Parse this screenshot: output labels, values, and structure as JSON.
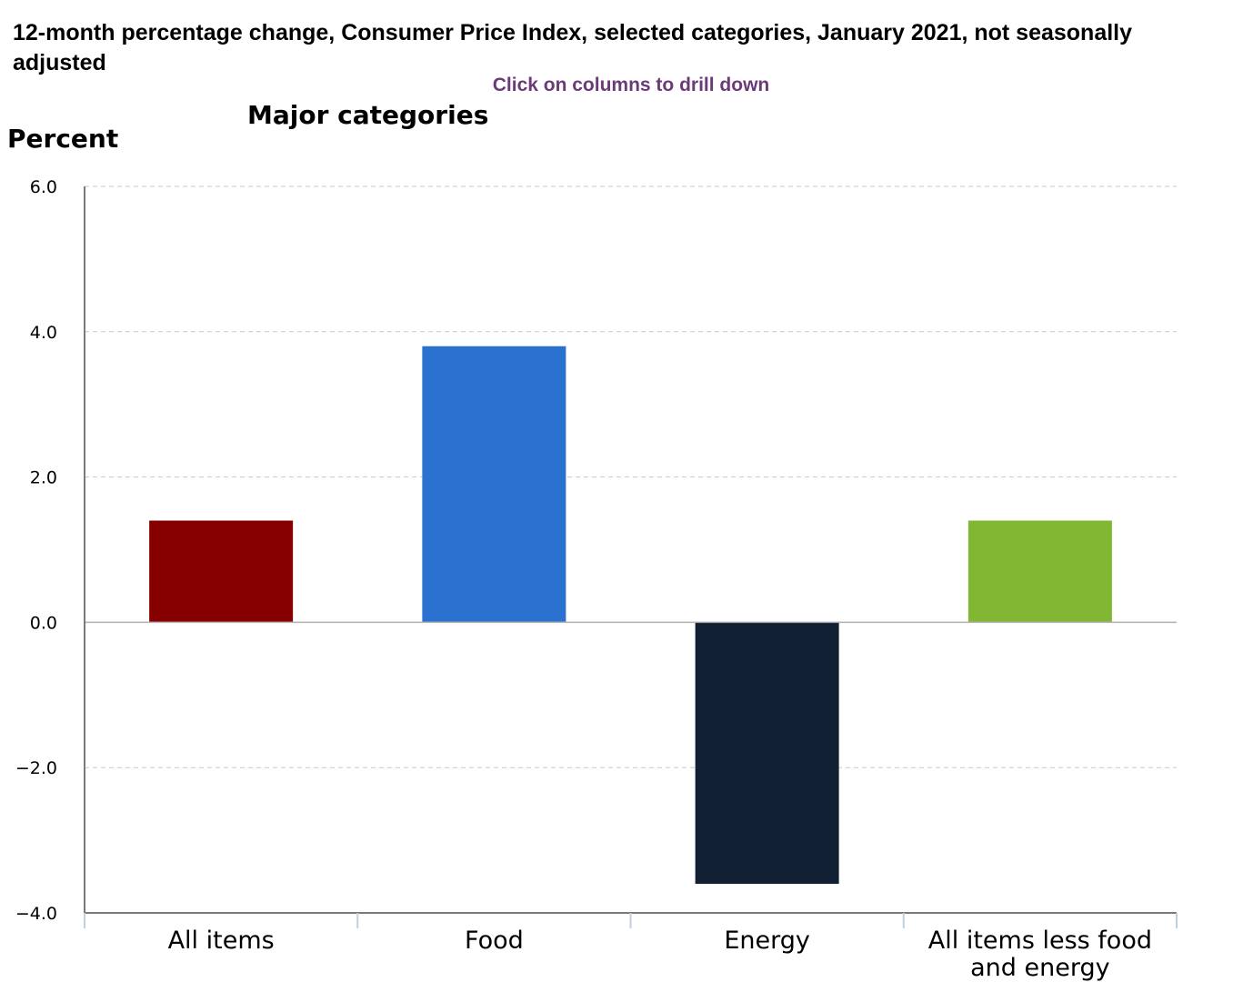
{
  "title": "12-month percentage change, Consumer Price Index, selected categories, January 2021, not seasonally adjusted",
  "hint": "Click on columns to drill down",
  "chart_data": {
    "type": "bar",
    "title": "Major categories",
    "ylabel": "Percent",
    "xlabel": "",
    "categories": [
      "All items",
      "Food",
      "Energy",
      "All items less food and energy"
    ],
    "category_lines": [
      [
        "All items"
      ],
      [
        "Food"
      ],
      [
        "Energy"
      ],
      [
        "All items less food",
        "and energy"
      ]
    ],
    "values": [
      1.4,
      3.8,
      -3.6,
      1.4
    ],
    "colors": [
      "#870000",
      "#2b71d0",
      "#122033",
      "#81b733"
    ],
    "ylim": [
      -4.0,
      6.0
    ],
    "yticks": [
      6.0,
      4.0,
      2.0,
      0.0,
      -2.0,
      -4.0
    ],
    "ytick_labels": [
      "6.0",
      "4.0",
      "2.0",
      "0.0",
      "−2.0",
      "−4.0"
    ],
    "grid": true,
    "legend": "none"
  }
}
